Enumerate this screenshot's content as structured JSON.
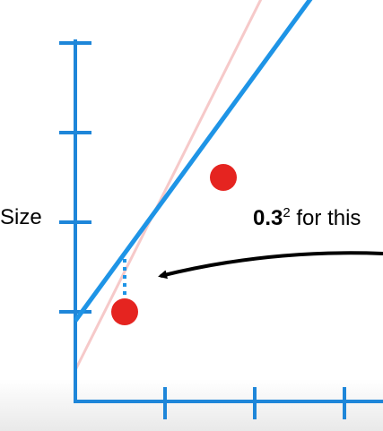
{
  "colors": {
    "axis": "#1e86d9",
    "fit_line": "#1e94e6",
    "reference_line": "#f6c9c9",
    "points": "#e52420",
    "residual": "#1e94e6",
    "arrow": "#000000"
  },
  "chart_data": {
    "type": "scatter",
    "ylabel": "Size",
    "xlim": [
      0,
      3.6
    ],
    "ylim": [
      0,
      4
    ],
    "x_ticks": [
      1,
      2,
      3
    ],
    "y_ticks": [
      1,
      2,
      3,
      4
    ],
    "tick_labels_shown": false,
    "grid": false,
    "points": [
      {
        "x": 0.55,
        "y": 1.0
      },
      {
        "x": 1.65,
        "y": 2.5
      }
    ],
    "fit_line": {
      "slope": 1.37,
      "intercept": 0.9
    },
    "reference_line": {
      "slope": 2.0,
      "intercept": 0.35
    },
    "residual": {
      "x": 0.55,
      "y_from": 1.1,
      "y_to": 1.65
    },
    "annotation": {
      "base": "0.3",
      "exponent": "2",
      "rest": " for this",
      "arrow_target": {
        "x": 0.95,
        "y": 1.4
      }
    }
  }
}
